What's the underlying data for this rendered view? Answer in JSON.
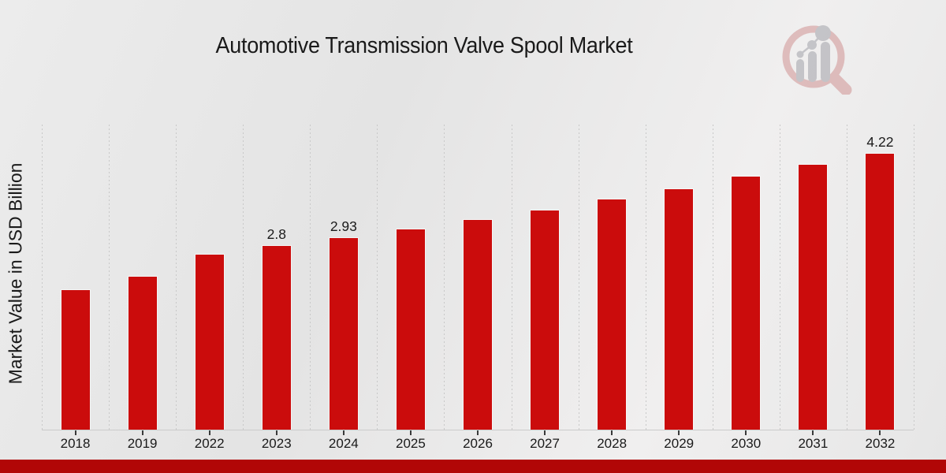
{
  "title": "Automotive Transmission Valve Spool Market",
  "y_axis_label": "Market Value in USD Billion",
  "colors": {
    "bar": "#cb0c0c",
    "banner": "#b10606",
    "grid": "#c8c8c8",
    "axis": "#cbcbcb",
    "tick": "#3a3a3a",
    "text": "#1a1a1a",
    "logoRing": "#cd8a8a",
    "logoGray": "#9a9aa2"
  },
  "chart_data": {
    "type": "bar",
    "title": "Automotive Transmission Valve Spool Market",
    "xlabel": "",
    "ylabel": "Market Value in USD Billion",
    "categories": [
      "2018",
      "2019",
      "2022",
      "2023",
      "2024",
      "2025",
      "2026",
      "2027",
      "2028",
      "2029",
      "2030",
      "2031",
      "2032"
    ],
    "values": [
      2.13,
      2.34,
      2.67,
      2.8,
      2.93,
      3.06,
      3.2,
      3.35,
      3.52,
      3.67,
      3.86,
      4.04,
      4.22
    ],
    "bar_labels": [
      "",
      "",
      "",
      "2.8",
      "2.93",
      "",
      "",
      "",
      "",
      "",
      "",
      "",
      "4.22"
    ],
    "ylim": [
      0,
      4.66
    ],
    "grid": "vertical-dashed",
    "legend": "none",
    "bar_color": "#cb0c0c"
  }
}
